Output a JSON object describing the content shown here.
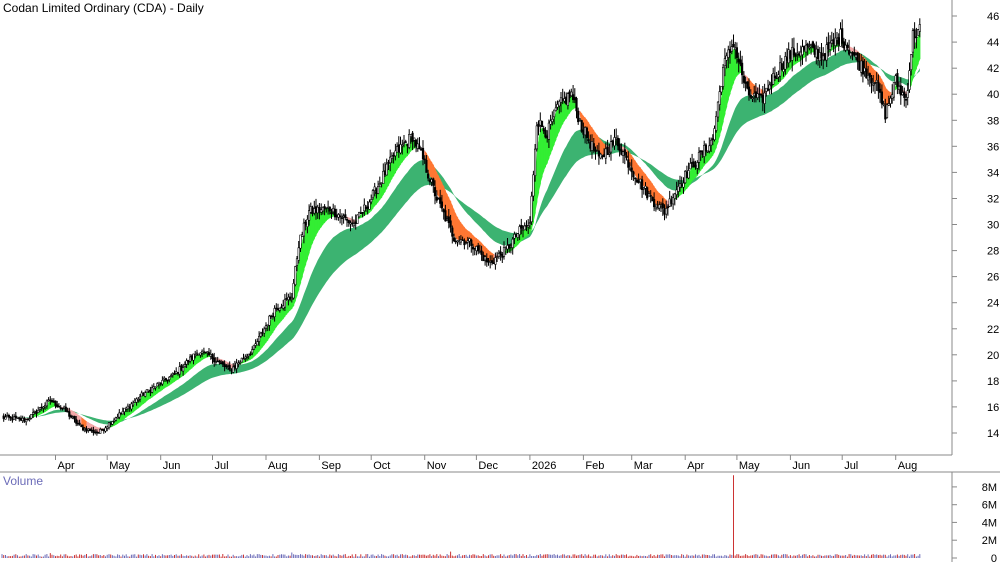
{
  "chart_data": [
    {
      "type": "candlestick",
      "title": "Codan Limited Ordinary (CDA) - Daily",
      "ylim": [
        12,
        47
      ],
      "y_ticks": [
        14,
        16,
        18,
        20,
        22,
        24,
        26,
        28,
        30,
        32,
        34,
        36,
        38,
        40,
        42,
        44,
        46
      ],
      "x_labels": [
        "Apr",
        "May",
        "Jun",
        "Jul",
        "Aug",
        "Sep",
        "Oct",
        "Nov",
        "Dec",
        "2026",
        "Feb",
        "Mar",
        "Apr",
        "May",
        "Jun",
        "Jul",
        "Aug"
      ],
      "x_label_days": [
        31,
        61,
        92,
        122,
        153,
        184,
        214,
        245,
        275,
        306,
        337,
        365,
        396,
        426,
        457,
        487,
        518
      ],
      "price_path": [
        [
          0,
          15.2
        ],
        [
          14,
          15.0
        ],
        [
          28,
          16.5
        ],
        [
          36,
          15.8
        ],
        [
          46,
          14.4
        ],
        [
          56,
          14.0
        ],
        [
          66,
          15.2
        ],
        [
          82,
          17.0
        ],
        [
          100,
          18.5
        ],
        [
          114,
          20.3
        ],
        [
          122,
          19.8
        ],
        [
          132,
          18.8
        ],
        [
          146,
          20.5
        ],
        [
          158,
          23.5
        ],
        [
          168,
          24.5
        ],
        [
          172,
          28.5
        ],
        [
          178,
          31.0
        ],
        [
          190,
          31.2
        ],
        [
          204,
          30.0
        ],
        [
          214,
          32.0
        ],
        [
          228,
          35.5
        ],
        [
          238,
          36.8
        ],
        [
          244,
          35.0
        ],
        [
          252,
          32.0
        ],
        [
          262,
          29.0
        ],
        [
          272,
          28.6
        ],
        [
          282,
          27.0
        ],
        [
          292,
          28.0
        ],
        [
          300,
          29.5
        ],
        [
          306,
          30.0
        ],
        [
          310,
          38.0
        ],
        [
          316,
          37.0
        ],
        [
          322,
          39.0
        ],
        [
          330,
          40.0
        ],
        [
          336,
          37.5
        ],
        [
          346,
          35.0
        ],
        [
          356,
          36.5
        ],
        [
          366,
          34.0
        ],
        [
          376,
          32.0
        ],
        [
          384,
          31.0
        ],
        [
          392,
          33.0
        ],
        [
          400,
          34.5
        ],
        [
          412,
          36.5
        ],
        [
          418,
          42.0
        ],
        [
          424,
          44.0
        ],
        [
          432,
          40.0
        ],
        [
          440,
          39.5
        ],
        [
          448,
          41.5
        ],
        [
          456,
          43.0
        ],
        [
          466,
          43.5
        ],
        [
          476,
          43.0
        ],
        [
          486,
          44.5
        ],
        [
          496,
          42.5
        ],
        [
          506,
          41.0
        ],
        [
          512,
          38.5
        ],
        [
          518,
          41.0
        ],
        [
          524,
          39.5
        ],
        [
          528,
          44.5
        ],
        [
          532,
          45.0
        ]
      ],
      "ribbons": [
        {
          "name": "short",
          "colors": {
            "up": "#33ee33",
            "down": "#ff7733",
            "neutral": "#f3a8a8"
          }
        },
        {
          "name": "long",
          "colors": {
            "fill": "#3cb371"
          }
        }
      ],
      "grid": false,
      "legend": "none"
    },
    {
      "type": "bar",
      "title": "Volume",
      "ylim": [
        0,
        9000000
      ],
      "y_ticks": [
        "0",
        "2M",
        "4M",
        "6M",
        "8M"
      ],
      "y_tick_values": [
        0,
        2000000,
        4000000,
        6000000,
        8000000
      ],
      "typical_volume": 300000,
      "spikes": [
        [
          424,
          9300000
        ],
        [
          28,
          550000
        ],
        [
          168,
          620000
        ],
        [
          260,
          720000
        ],
        [
          540,
          700000
        ]
      ],
      "colors": {
        "up": "#6b6bb8",
        "down": "#cc3333"
      }
    }
  ]
}
